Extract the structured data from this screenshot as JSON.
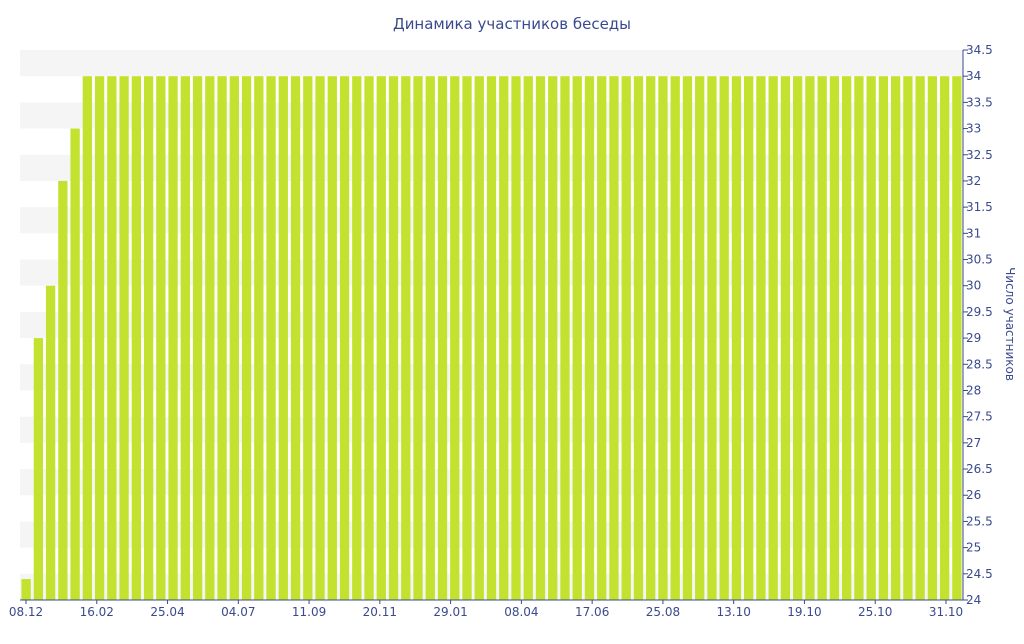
{
  "chart_data": {
    "type": "bar",
    "title": "Динамика участников беседы",
    "xlabel": "",
    "ylabel": "Число участников",
    "ylim": [
      24,
      34.5
    ],
    "yticks": [
      24,
      24.5,
      25,
      25.5,
      26,
      26.5,
      27,
      27.5,
      28,
      28.5,
      29,
      29.5,
      30,
      30.5,
      31,
      31.5,
      32,
      32.5,
      33,
      33.5,
      34,
      34.5
    ],
    "xtick_labels": [
      "08.12",
      "16.02",
      "25.04",
      "04.07",
      "11.09",
      "20.11",
      "29.01",
      "08.04",
      "17.06",
      "25.08",
      "13.10",
      "19.10",
      "25.10",
      "31.10"
    ],
    "bar_color": "#c3e22f",
    "band_color": "#f5f5f5",
    "grid": false,
    "legend": "none",
    "values": [
      24.4,
      29,
      30,
      32,
      33,
      34,
      34,
      34,
      34,
      34,
      34,
      34,
      34,
      34,
      34,
      34,
      34,
      34,
      34,
      34,
      34,
      34,
      34,
      34,
      34,
      34,
      34,
      34,
      34,
      34,
      34,
      34,
      34,
      34,
      34,
      34,
      34,
      34,
      34,
      34,
      34,
      34,
      34,
      34,
      34,
      34,
      34,
      34,
      34,
      34,
      34,
      34,
      34,
      34,
      34,
      34,
      34,
      34,
      34,
      34,
      34,
      34,
      34,
      34,
      34,
      34,
      34,
      34,
      34,
      34,
      34,
      34,
      34,
      34,
      34,
      34,
      34
    ]
  }
}
